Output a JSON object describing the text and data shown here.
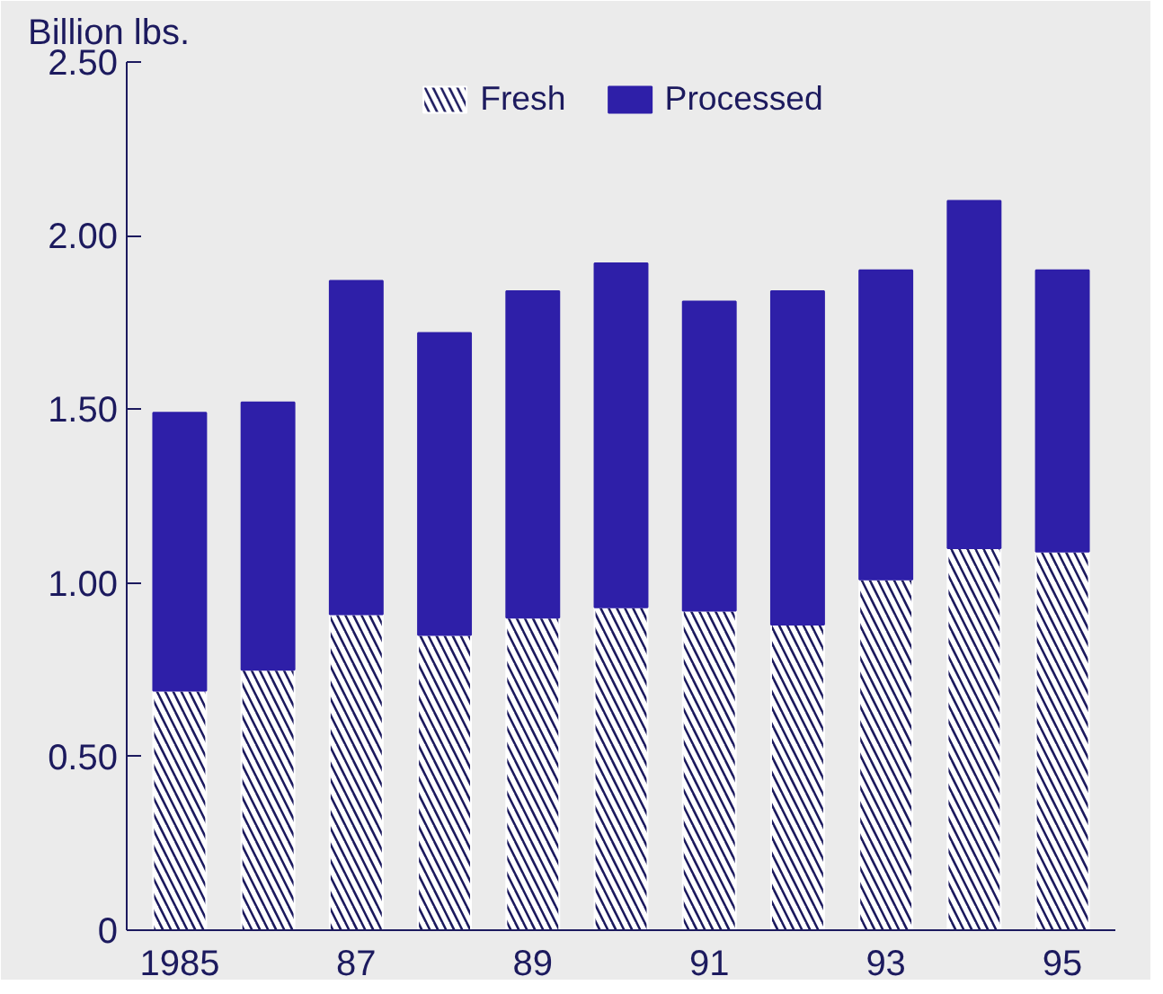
{
  "chart_data": {
    "type": "bar",
    "stacked": true,
    "ylabel": "Billion lbs.",
    "categories": [
      "1985",
      null,
      "87",
      null,
      "89",
      null,
      "91",
      null,
      "93",
      null,
      "95"
    ],
    "series": [
      {
        "name": "Fresh",
        "color": "#ffffff",
        "values": [
          0.69,
          0.75,
          0.91,
          0.85,
          0.9,
          0.93,
          0.92,
          0.88,
          1.01,
          1.1,
          1.09
        ]
      },
      {
        "name": "Processed",
        "color": "#2e1fa8",
        "values": [
          0.8,
          0.77,
          0.96,
          0.87,
          0.94,
          0.99,
          0.89,
          0.96,
          0.89,
          1.0,
          0.81
        ]
      }
    ],
    "ylim": [
      0,
      2.5
    ],
    "yticks": [
      {
        "value": 0,
        "label": "0"
      },
      {
        "value": 0.5,
        "label": "0.50"
      },
      {
        "value": 1,
        "label": "1.00"
      },
      {
        "value": 1.5,
        "label": "1.50"
      },
      {
        "value": 2,
        "label": "2.00"
      },
      {
        "value": 2.5,
        "label": "2.50"
      }
    ],
    "grid": false,
    "legend": "top"
  }
}
